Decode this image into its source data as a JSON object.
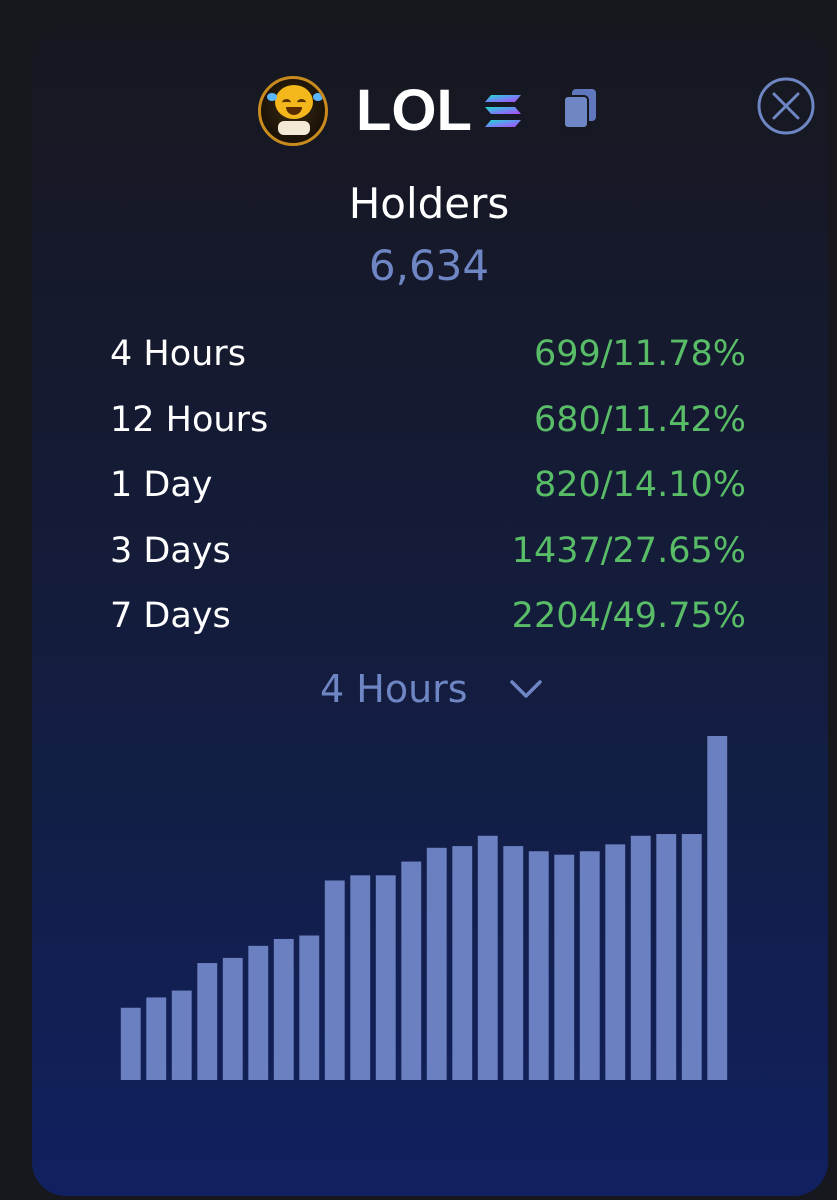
{
  "token": {
    "name": "LOL",
    "chain_icon": "solana-logo-icon",
    "copy_icon": "copy-icon"
  },
  "close_icon": "close-circle-icon",
  "holders": {
    "label": "Holders",
    "count": "6,634"
  },
  "stats": [
    {
      "period": "4 Hours",
      "value": "699/11.78%"
    },
    {
      "period": "12 Hours",
      "value": "680/11.42%"
    },
    {
      "period": "1 Day",
      "value": "820/14.10%"
    },
    {
      "period": "3 Days",
      "value": "1437/27.65%"
    },
    {
      "period": "7 Days",
      "value": "2204/49.75%"
    }
  ],
  "period_selector": {
    "selected": "4 Hours",
    "icon": "chevron-down-icon"
  },
  "colors": {
    "accent": "#6f86c4",
    "positive": "#59bd68",
    "bars": "#6b80c0"
  },
  "chart_data": {
    "type": "bar",
    "title": "",
    "xlabel": "",
    "ylabel": "",
    "ylim": [
      0,
      100
    ],
    "grid": false,
    "values": [
      21,
      24,
      26,
      34,
      35.5,
      39,
      41,
      42,
      58,
      59.5,
      59.5,
      63.5,
      67.5,
      68,
      71,
      68,
      66.5,
      65.5,
      66.5,
      68.5,
      71,
      71.5,
      71.5,
      100
    ]
  }
}
